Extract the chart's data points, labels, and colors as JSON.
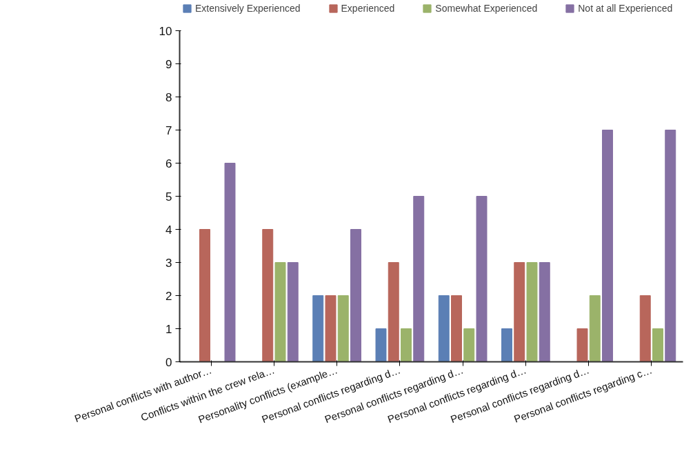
{
  "chart_data": {
    "type": "bar",
    "categories": [
      "Personal conflicts with author…",
      "Conflicts within the crew rela…",
      "Personality conflicts (example…",
      "Personal conflicts regarding d…",
      "Personal conflicts regarding d…",
      "Personal conflicts regarding d…",
      "Personal conflicts regarding d…",
      "Personal conflicts regarding c…"
    ],
    "series": [
      {
        "name": "Extensively Experienced",
        "color": "#5b7fb5",
        "values": [
          0,
          0,
          2,
          1,
          2,
          1,
          0,
          0
        ]
      },
      {
        "name": "Experienced",
        "color": "#b8665b",
        "values": [
          4,
          4,
          2,
          3,
          2,
          3,
          1,
          2
        ]
      },
      {
        "name": "Somewhat Experienced",
        "color": "#9bb36a",
        "values": [
          0,
          3,
          2,
          1,
          1,
          3,
          2,
          1
        ]
      },
      {
        "name": "Not at all Experienced",
        "color": "#8570a3",
        "values": [
          6,
          3,
          4,
          5,
          5,
          3,
          7,
          7
        ]
      }
    ],
    "ylim": [
      0,
      10
    ],
    "yticks": [
      0,
      1,
      2,
      3,
      4,
      5,
      6,
      7,
      8,
      9,
      10
    ],
    "grid": false,
    "legend": "top left"
  }
}
